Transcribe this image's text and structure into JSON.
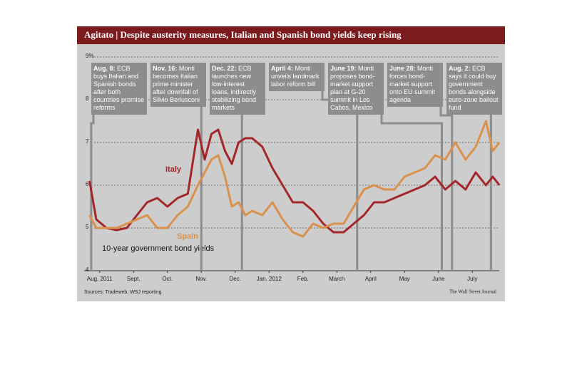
{
  "chart_data": {
    "type": "line",
    "title": "Agitato | Despite austerity measures, Italian and Spanish bond yields keep rising",
    "x": [
      0.2,
      0.4,
      0.7,
      1.0,
      1.3,
      1.6,
      1.9,
      2.2,
      2.5,
      2.8,
      3.1,
      3.4,
      3.6,
      3.8,
      4.0,
      4.2,
      4.4,
      4.6,
      4.8,
      5.0,
      5.3,
      5.6,
      5.9,
      6.2,
      6.5,
      6.8,
      7.1,
      7.4,
      7.7,
      8.0,
      8.3,
      8.6,
      8.9,
      9.2,
      9.5,
      9.8,
      10.1,
      10.4,
      10.7,
      11.0,
      11.3,
      11.6,
      11.9,
      12.1,
      12.3
    ],
    "series": [
      {
        "name": "Italy",
        "color": "#a3262a",
        "values": [
          6.1,
          5.2,
          5.0,
          4.95,
          5.0,
          5.3,
          5.6,
          5.7,
          5.5,
          5.7,
          5.8,
          7.3,
          6.6,
          7.2,
          7.3,
          6.8,
          6.5,
          7.0,
          7.1,
          7.1,
          6.9,
          6.4,
          6.0,
          5.6,
          5.6,
          5.4,
          5.1,
          4.9,
          4.9,
          5.1,
          5.3,
          5.6,
          5.6,
          5.7,
          5.8,
          5.9,
          6.0,
          6.2,
          5.9,
          6.1,
          5.9,
          6.3,
          6.0,
          6.2,
          6.0
        ]
      },
      {
        "name": "Spain",
        "color": "#d9914c",
        "values": [
          5.3,
          5.0,
          5.0,
          5.0,
          5.1,
          5.2,
          5.3,
          5.0,
          5.0,
          5.3,
          5.5,
          6.0,
          6.3,
          6.6,
          6.7,
          6.2,
          5.5,
          5.6,
          5.3,
          5.4,
          5.3,
          5.6,
          5.2,
          4.9,
          4.8,
          5.1,
          5.0,
          5.1,
          5.1,
          5.5,
          5.9,
          6.0,
          5.9,
          5.9,
          6.2,
          6.3,
          6.4,
          6.7,
          6.6,
          7.0,
          6.6,
          6.9,
          7.5,
          6.8,
          7.0
        ]
      }
    ],
    "xlim": [
      0,
      12.4
    ],
    "xticks": [
      {
        "value": 0.5,
        "label": "Aug. 2011"
      },
      {
        "value": 1.5,
        "label": "Sept."
      },
      {
        "value": 2.5,
        "label": "Oct."
      },
      {
        "value": 3.5,
        "label": "Nov."
      },
      {
        "value": 4.5,
        "label": "Dec."
      },
      {
        "value": 5.5,
        "label": "Jan. 2012"
      },
      {
        "value": 6.5,
        "label": "Feb."
      },
      {
        "value": 7.5,
        "label": "March"
      },
      {
        "value": 8.5,
        "label": "April"
      },
      {
        "value": 9.5,
        "label": "May"
      },
      {
        "value": 10.5,
        "label": "June"
      },
      {
        "value": 11.5,
        "label": "July"
      }
    ],
    "ylim": [
      4,
      9
    ],
    "yticks": [
      4,
      5,
      6,
      7,
      8,
      {
        "value": 9,
        "label": "9%"
      }
    ],
    "grid": true,
    "subtitle": "10-year government bond yields",
    "annotations": [
      {
        "x": 0.25,
        "date": "Aug. 8:",
        "text": "ECB buys Italian and Spanish bonds after both countries promise reforms"
      },
      {
        "x": 3.5,
        "date": "Nov. 16:",
        "text": "Monti becomes Italian prime minister after downfall of Silvio Berlusconi"
      },
      {
        "x": 4.7,
        "date": "Dec. 22:",
        "text": "ECB launches new low-interest loans, indirectly stabilizing bond markets"
      },
      {
        "x": 8.1,
        "date": "April 4:",
        "text": "Monti unveils landmark labor reform bill"
      },
      {
        "x": 10.6,
        "date": "June 19:",
        "text": "Monti proposes bond-market support plan at G-20 summit in Los Cabos, Mexico"
      },
      {
        "x": 10.9,
        "date": "June 28:",
        "text": "Monti forces bond-market support onto EU summit agenda"
      },
      {
        "x": 12.05,
        "date": "Aug. 2:",
        "text": "ECB says it could buy government bonds alongside euro-zone bailout fund"
      }
    ],
    "source": "Sources: Tradeweb; WSJ reporting",
    "credit": "The Wall Street Journal"
  }
}
